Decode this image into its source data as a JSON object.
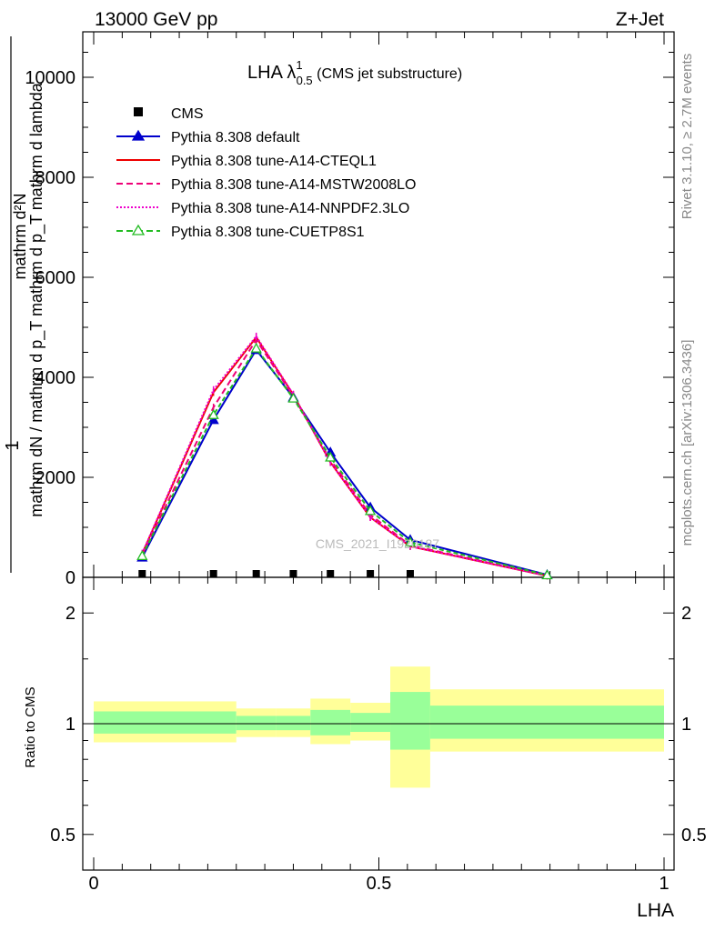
{
  "header": {
    "left": "13000 GeV pp",
    "right": "Z+Jet"
  },
  "title": {
    "main": "LHA λ",
    "sup": "1",
    "sub": "0.5",
    "suffix": " (CMS jet substructure)"
  },
  "side_labels": {
    "rivet": "Rivet 3.1.10, ≥ 2.7M events",
    "mcplots": "mcplots.cern.ch [arXiv:1306.3436]"
  },
  "watermark": "CMS_2021_I1920187",
  "axes": {
    "ylabel_line1": "1",
    "ylabel_line2": "mathrm dN / mathrm d p_T mathrm d p_T mathrm d lambda",
    "ylabel_numer": "mathrm d²N",
    "xlabel": "LHA",
    "ratio_ylabel": "Ratio to CMS",
    "main_yticks": [
      "0",
      "2000",
      "4000",
      "6000",
      "8000",
      "10000"
    ],
    "ratio_yticks": [
      "0.5",
      "1",
      "2"
    ],
    "xticks": [
      "0",
      "0.5",
      "1"
    ]
  },
  "legend": [
    {
      "label": "CMS",
      "color": "#000000",
      "style": "marker-square"
    },
    {
      "label": "Pythia 8.308 default",
      "color": "#0000cc",
      "style": "solid-triangle"
    },
    {
      "label": "Pythia 8.308 tune-A14-CTEQL1",
      "color": "#ee0000",
      "style": "solid"
    },
    {
      "label": "Pythia 8.308 tune-A14-MSTW2008LO",
      "color": "#ee0077",
      "style": "dashed"
    },
    {
      "label": "Pythia 8.308 tune-A14-NNPDF2.3LO",
      "color": "#ee00cc",
      "style": "dotted"
    },
    {
      "label": "Pythia 8.308 tune-CUETP8S1",
      "color": "#22bb22",
      "style": "dashed-open-triangle"
    }
  ],
  "chart_data": {
    "type": "line",
    "xlim": [
      0,
      1
    ],
    "ylim": [
      0,
      11000
    ],
    "ratio_ylim_log": [
      0.4,
      2.5
    ],
    "x": [
      0.085,
      0.21,
      0.285,
      0.35,
      0.415,
      0.485,
      0.555,
      0.795
    ],
    "data_cms": [
      0,
      0,
      0,
      0,
      0,
      0,
      0,
      null
    ],
    "series": [
      {
        "name": "Pythia 8.308 default",
        "color": "#0000cc",
        "dash": "",
        "marker": "triangle",
        "values": [
          400,
          3150,
          4550,
          3600,
          2500,
          1400,
          750,
          50
        ]
      },
      {
        "name": "Pythia 8.308 tune-A14-CTEQL1",
        "color": "#ee0000",
        "dash": "",
        "marker": "none",
        "values": [
          470,
          3700,
          4800,
          3650,
          2300,
          1200,
          620,
          30
        ]
      },
      {
        "name": "Pythia 8.308 tune-A14-MSTW2008LO",
        "color": "#ee0077",
        "dash": "7,4",
        "marker": "none",
        "values": [
          450,
          3400,
          4750,
          3620,
          2350,
          1250,
          640,
          35
        ]
      },
      {
        "name": "Pythia 8.308 tune-A14-NNPDF2.3LO",
        "color": "#ee00cc",
        "dash": "2,2",
        "marker": "none",
        "values": [
          480,
          3750,
          4820,
          3660,
          2300,
          1200,
          620,
          30
        ]
      },
      {
        "name": "Pythia 8.308 tune-CUETP8S1",
        "color": "#22bb22",
        "dash": "5,3",
        "marker": "open-triangle",
        "values": [
          430,
          3250,
          4580,
          3580,
          2400,
          1330,
          700,
          45
        ]
      }
    ],
    "ratio_bands": [
      {
        "x0": 0.0,
        "x1": 0.25,
        "yellow": [
          0.89,
          1.15
        ],
        "green": [
          0.94,
          1.08
        ]
      },
      {
        "x0": 0.25,
        "x1": 0.32,
        "yellow": [
          0.92,
          1.1
        ],
        "green": [
          0.96,
          1.05
        ]
      },
      {
        "x0": 0.32,
        "x1": 0.38,
        "yellow": [
          0.92,
          1.1
        ],
        "green": [
          0.96,
          1.05
        ]
      },
      {
        "x0": 0.38,
        "x1": 0.45,
        "yellow": [
          0.88,
          1.17
        ],
        "green": [
          0.93,
          1.09
        ]
      },
      {
        "x0": 0.45,
        "x1": 0.52,
        "yellow": [
          0.9,
          1.14
        ],
        "green": [
          0.95,
          1.07
        ]
      },
      {
        "x0": 0.52,
        "x1": 0.59,
        "yellow": [
          0.67,
          1.43
        ],
        "green": [
          0.85,
          1.22
        ]
      },
      {
        "x0": 0.59,
        "x1": 1.0,
        "yellow": [
          0.84,
          1.24
        ],
        "green": [
          0.91,
          1.12
        ]
      }
    ]
  }
}
